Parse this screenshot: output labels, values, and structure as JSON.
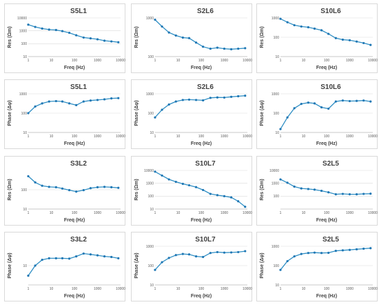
{
  "styles": {
    "line_color": "#2e8ec4",
    "marker_color": "#1f77b4",
    "grid_color": "#d9d9d9"
  },
  "chart_data": [
    {
      "type": "line",
      "title": "S5L1",
      "xlabel": "Freq (Hz)",
      "ylabel": "Res (Ωm)",
      "x_scale": "log",
      "y_scale": "log",
      "xticks": [
        "1",
        "10",
        "100",
        "1000",
        "10000"
      ],
      "yticks": [
        "10",
        "100",
        "1000",
        "10000"
      ],
      "ylim": [
        10,
        10000
      ],
      "x": [
        1,
        2,
        4,
        8,
        16,
        30,
        60,
        120,
        250,
        500,
        1000,
        2000,
        4000,
        8000
      ],
      "y": [
        3000,
        2000,
        1500,
        1250,
        1150,
        950,
        700,
        450,
        300,
        260,
        220,
        170,
        150,
        130
      ]
    },
    {
      "type": "line",
      "title": "S2L6",
      "xlabel": "Freq (Hz)",
      "ylabel": "Res (Ωm)",
      "x_scale": "log",
      "y_scale": "log",
      "xticks": [
        "1",
        "10",
        "100",
        "1000",
        "10000"
      ],
      "yticks": [
        "100",
        "1000"
      ],
      "ylim": [
        100,
        1000
      ],
      "x": [
        1,
        2,
        4,
        8,
        16,
        30,
        60,
        120,
        250,
        500,
        1000,
        2000,
        4000,
        8000
      ],
      "y": [
        900,
        600,
        420,
        350,
        310,
        300,
        230,
        180,
        160,
        170,
        160,
        155,
        160,
        165
      ]
    },
    {
      "type": "line",
      "title": "S10L6",
      "xlabel": "Freq (Hz)",
      "ylabel": "Res (Ωm)",
      "x_scale": "log",
      "y_scale": "log",
      "xticks": [
        "1",
        "10",
        "100",
        "1000",
        "10000"
      ],
      "yticks": [
        "10",
        "100",
        "1000"
      ],
      "ylim": [
        10,
        1000
      ],
      "x": [
        1,
        2,
        4,
        8,
        16,
        30,
        60,
        120,
        250,
        500,
        1000,
        2000,
        4000,
        8000
      ],
      "y": [
        900,
        600,
        420,
        360,
        330,
        280,
        230,
        150,
        90,
        75,
        70,
        60,
        50,
        40
      ]
    },
    {
      "type": "line",
      "title": "S5L1",
      "xlabel": "Freq (Hz)",
      "ylabel": "Phase (Δφ)",
      "x_scale": "log",
      "y_scale": "log",
      "xticks": [
        "1",
        "10",
        "100",
        "1000",
        "10000"
      ],
      "yticks": [
        "10",
        "100",
        "1000"
      ],
      "ylim": [
        10,
        1000
      ],
      "x": [
        1,
        2,
        4,
        8,
        16,
        30,
        60,
        120,
        250,
        500,
        1000,
        2000,
        4000,
        8000
      ],
      "y": [
        100,
        220,
        320,
        400,
        420,
        400,
        320,
        260,
        400,
        450,
        480,
        520,
        580,
        600
      ]
    },
    {
      "type": "line",
      "title": "S2L6",
      "xlabel": "Freq (Hz)",
      "ylabel": "Phase (Δφ)",
      "x_scale": "log",
      "y_scale": "log",
      "xticks": [
        "1",
        "10",
        "100",
        "1000",
        "10000"
      ],
      "yticks": [
        "10",
        "100",
        "1000"
      ],
      "ylim": [
        10,
        1000
      ],
      "x": [
        1,
        2,
        4,
        8,
        16,
        30,
        60,
        120,
        250,
        500,
        1000,
        2000,
        4000,
        8000
      ],
      "y": [
        60,
        150,
        280,
        400,
        480,
        500,
        480,
        460,
        620,
        650,
        640,
        700,
        750,
        800
      ]
    },
    {
      "type": "line",
      "title": "S10L6",
      "xlabel": "Freq (Hz)",
      "ylabel": "Phase (Δφ)",
      "x_scale": "log",
      "y_scale": "log",
      "xticks": [
        "1",
        "10",
        "100",
        "1000",
        "10000"
      ],
      "yticks": [
        "10",
        "100",
        "1000"
      ],
      "ylim": [
        10,
        1000
      ],
      "x": [
        1,
        2,
        4,
        8,
        16,
        30,
        60,
        120,
        250,
        500,
        1000,
        2000,
        4000,
        8000
      ],
      "y": [
        15,
        60,
        180,
        300,
        350,
        320,
        200,
        170,
        400,
        450,
        420,
        430,
        450,
        400
      ]
    },
    {
      "type": "line",
      "title": "S3L2",
      "xlabel": "Freq (Hz)",
      "ylabel": "Res (Ωm)",
      "x_scale": "log",
      "y_scale": "log",
      "xticks": [
        "1",
        "10",
        "100",
        "1000",
        "10000"
      ],
      "yticks": [
        "10",
        "100"
      ],
      "ylim": [
        10,
        1000
      ],
      "x": [
        1,
        2,
        4,
        8,
        16,
        30,
        60,
        120,
        250,
        500,
        1000,
        2000,
        4000,
        8000
      ],
      "y": [
        500,
        240,
        160,
        140,
        135,
        115,
        95,
        80,
        95,
        120,
        135,
        140,
        135,
        125
      ]
    },
    {
      "type": "line",
      "title": "S10L7",
      "xlabel": "Freq (Hz)",
      "ylabel": "Res (Ωm)",
      "x_scale": "log",
      "y_scale": "log",
      "xticks": [
        "1",
        "10",
        "100",
        "1000",
        "10000"
      ],
      "yticks": [
        "10",
        "100",
        "1000",
        "10000"
      ],
      "ylim": [
        10,
        10000
      ],
      "x": [
        1,
        2,
        4,
        8,
        16,
        30,
        60,
        120,
        250,
        500,
        1000,
        2000,
        4000,
        8000
      ],
      "y": [
        8000,
        4000,
        2000,
        1300,
        900,
        700,
        500,
        300,
        150,
        120,
        100,
        80,
        40,
        15
      ]
    },
    {
      "type": "line",
      "title": "S2L5",
      "xlabel": "Freq (Hz)",
      "ylabel": "Res (Ωm)",
      "x_scale": "log",
      "y_scale": "log",
      "xticks": [
        "1",
        "10",
        "100",
        "1000",
        "10000"
      ],
      "yticks": [
        "100",
        "1000",
        "10000"
      ],
      "ylim": [
        10,
        10000
      ],
      "x": [
        1,
        2,
        4,
        8,
        16,
        30,
        60,
        120,
        250,
        500,
        1000,
        2000,
        4000,
        8000
      ],
      "y": [
        2000,
        1100,
        550,
        400,
        360,
        320,
        260,
        200,
        140,
        150,
        140,
        140,
        150,
        155
      ]
    },
    {
      "type": "line",
      "title": "S3L2",
      "xlabel": "Freq (Hz)",
      "ylabel": "Phase (Δφ)",
      "x_scale": "log",
      "y_scale": "log",
      "xticks": [
        "1",
        "10",
        "100",
        "1000",
        "10000"
      ],
      "yticks": [
        "10"
      ],
      "ylim": [
        1,
        100
      ],
      "x": [
        1,
        2,
        4,
        8,
        16,
        30,
        60,
        120,
        250,
        500,
        1000,
        2000,
        4000,
        8000
      ],
      "y": [
        3,
        10,
        20,
        24,
        24,
        24,
        23,
        30,
        42,
        38,
        34,
        30,
        28,
        24
      ]
    },
    {
      "type": "line",
      "title": "S10L7",
      "xlabel": "Freq (Hz)",
      "ylabel": "Phase (Δφ)",
      "x_scale": "log",
      "y_scale": "log",
      "xticks": [
        "1",
        "10",
        "100",
        "1000",
        "10000"
      ],
      "yticks": [
        "10",
        "100",
        "1000"
      ],
      "ylim": [
        10,
        1000
      ],
      "x": [
        1,
        2,
        4,
        8,
        16,
        30,
        60,
        120,
        250,
        500,
        1000,
        2000,
        4000,
        8000
      ],
      "y": [
        60,
        150,
        250,
        350,
        400,
        380,
        300,
        280,
        450,
        500,
        470,
        480,
        500,
        560
      ]
    },
    {
      "type": "line",
      "title": "S2L5",
      "xlabel": "Freq (Hz)",
      "ylabel": "Phase (Δφ)",
      "x_scale": "log",
      "y_scale": "log",
      "xticks": [
        "1",
        "10",
        "100",
        "1000",
        "10000"
      ],
      "yticks": [
        "10",
        "100",
        "1000"
      ],
      "ylim": [
        10,
        1000
      ],
      "x": [
        1,
        2,
        4,
        8,
        16,
        30,
        60,
        120,
        250,
        500,
        1000,
        2000,
        4000,
        8000
      ],
      "y": [
        60,
        170,
        300,
        400,
        450,
        470,
        450,
        460,
        580,
        620,
        650,
        700,
        750,
        800
      ]
    }
  ]
}
